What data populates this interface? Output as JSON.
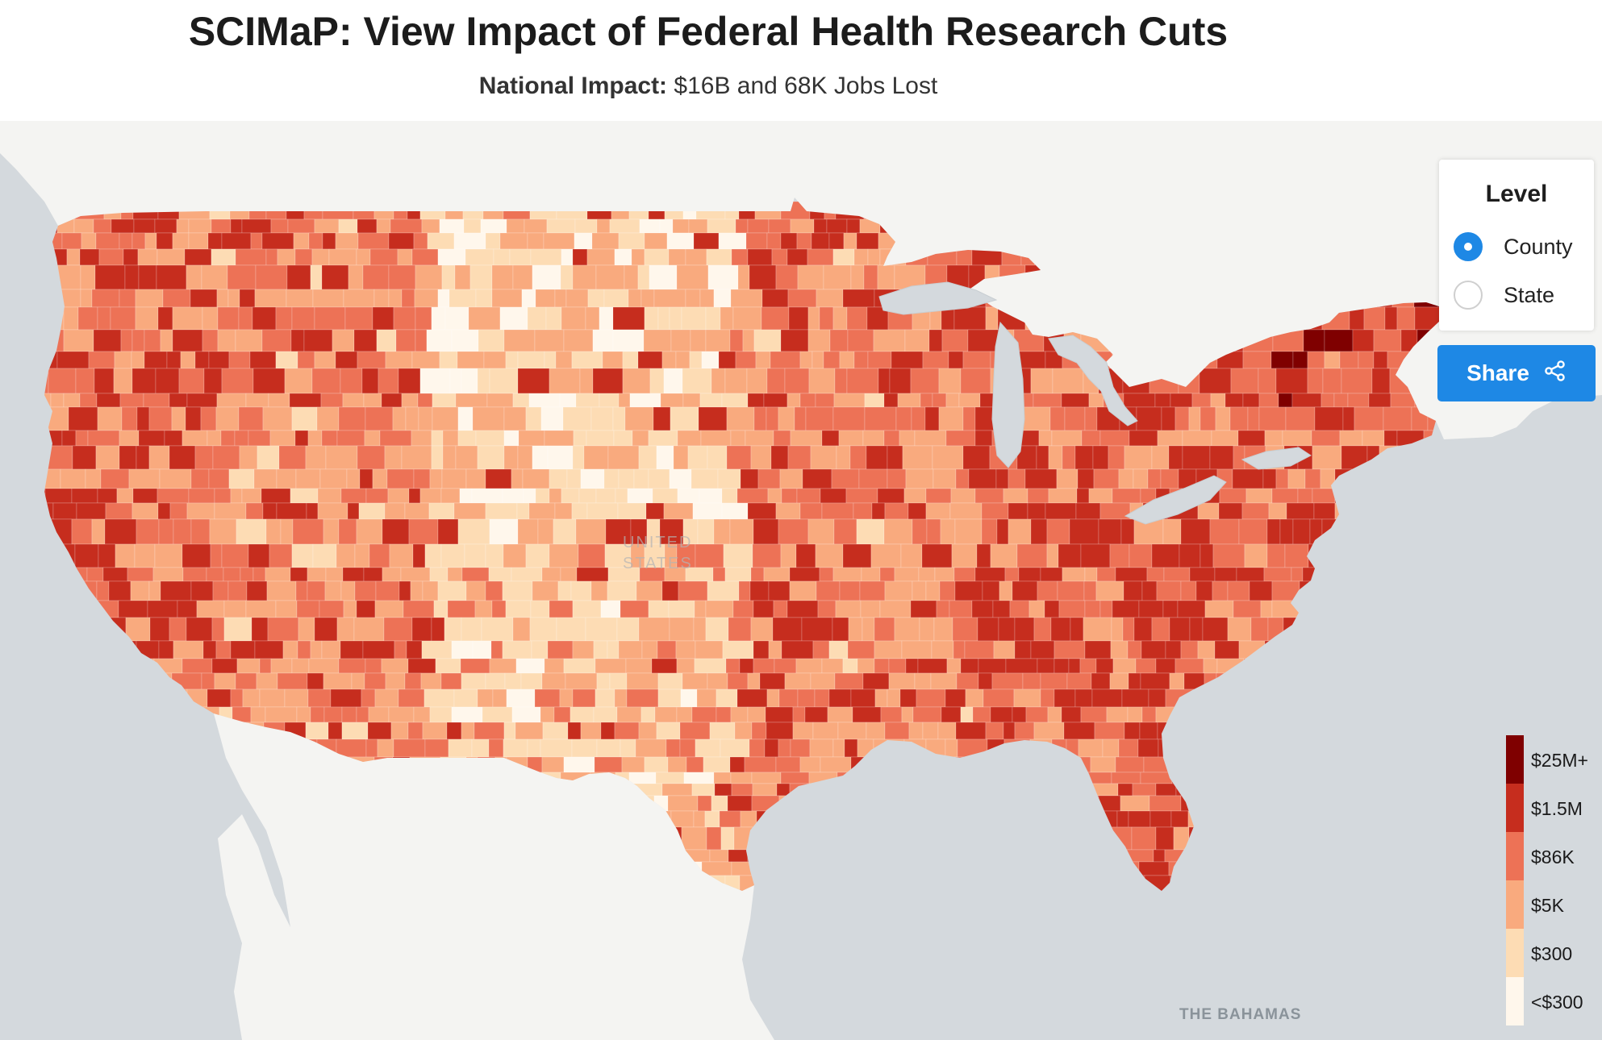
{
  "header": {
    "title": "SCIMaP: View Impact of Federal Health Research Cuts",
    "subtitle_label": "National Impact:",
    "subtitle_value": " $16B and 68K Jobs Lost"
  },
  "level_panel": {
    "title": "Level",
    "options": [
      {
        "label": "County",
        "checked": true
      },
      {
        "label": "State",
        "checked": false
      }
    ]
  },
  "share": {
    "label": "Share",
    "icon": "share-icon"
  },
  "legend": {
    "items": [
      {
        "label": "$25M+",
        "color": "#7f0000"
      },
      {
        "label": "$1.5M",
        "color": "#c62d1e"
      },
      {
        "label": "$86K",
        "color": "#ed7256"
      },
      {
        "label": "$5K",
        "color": "#f9aa7e"
      },
      {
        "label": "$300",
        "color": "#fddcb4"
      },
      {
        "label": "<$300",
        "color": "#fff7ec"
      }
    ]
  },
  "map_labels": {
    "bahamas": "THE BAHAMAS",
    "country_line1": "UNITED",
    "country_line2": "STATES"
  },
  "colors": {
    "water": "#d4d9dd",
    "land": "#f4f4f2",
    "accent": "#1e88e5"
  }
}
